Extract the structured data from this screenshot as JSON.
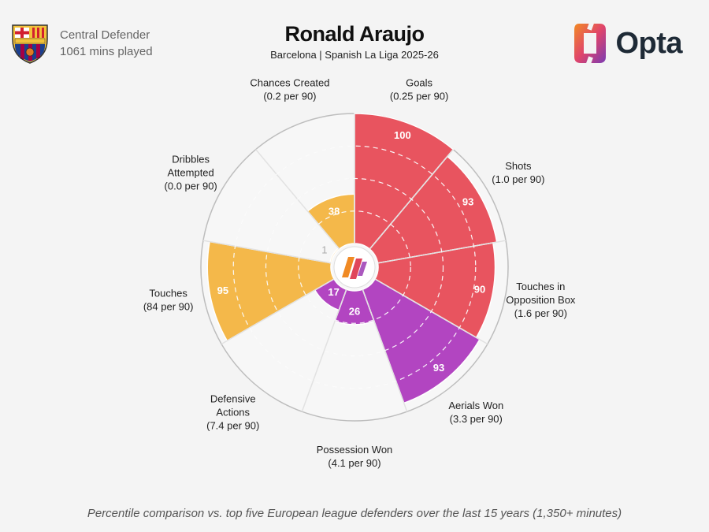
{
  "player": {
    "name": "Ronald Araujo",
    "context": "Barcelona | Spanish La Liga 2025-26",
    "position": "Central Defender",
    "minutes": "1061 mins played"
  },
  "club_crest_text": "FCB",
  "brand": {
    "name": "Opta"
  },
  "footnote": "Percentile comparison vs. top five European league defenders over the last 15 years (1,350+ minutes)",
  "colors": {
    "attacking": "#e8545f",
    "possession": "#f4b84a",
    "defending": "#b245c1",
    "background": "#f4f4f4"
  },
  "chart_data": {
    "type": "polar-bar",
    "scale": [
      0,
      100
    ],
    "categories": [
      {
        "name": "Goals",
        "per90": "(0.25 per 90)",
        "percentile": 100,
        "group": "attacking"
      },
      {
        "name": "Shots",
        "per90": "(1.0 per 90)",
        "percentile": 93,
        "group": "attacking"
      },
      {
        "name": "Touches in Opposition Box",
        "per90": "(1.6 per 90)",
        "percentile": 90,
        "group": "attacking"
      },
      {
        "name": "Aerials Won",
        "per90": "(3.3 per 90)",
        "percentile": 93,
        "group": "defending"
      },
      {
        "name": "Possession Won",
        "per90": "(4.1 per 90)",
        "percentile": 26,
        "group": "defending"
      },
      {
        "name": "Defensive Actions",
        "per90": "(7.4 per 90)",
        "percentile": 17,
        "group": "defending"
      },
      {
        "name": "Touches",
        "per90": "(84 per 90)",
        "percentile": 95,
        "group": "possession"
      },
      {
        "name": "Dribbles Attempted",
        "per90": "(0.0 per 90)",
        "percentile": 1,
        "group": "possession"
      },
      {
        "name": "Chances Created",
        "per90": "(0.2 per 90)",
        "percentile": 38,
        "group": "possession"
      }
    ]
  }
}
